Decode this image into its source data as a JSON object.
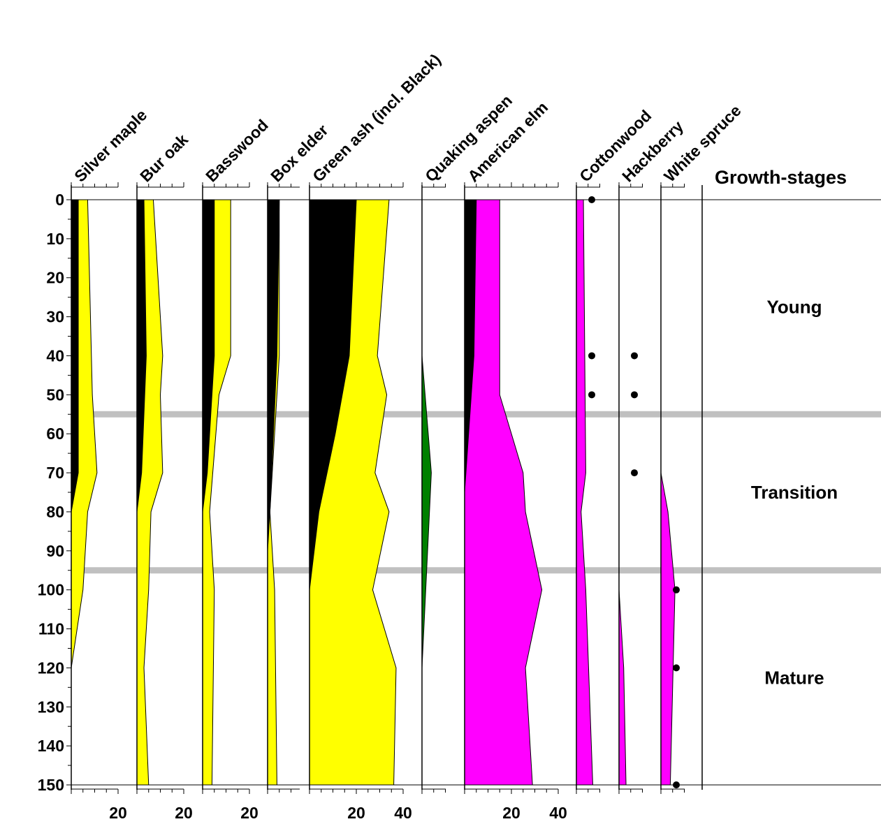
{
  "chart_data": {
    "type": "area",
    "depths": [
      0,
      10,
      20,
      30,
      40,
      50,
      60,
      70,
      80,
      90,
      100,
      110,
      120,
      130,
      140,
      150
    ],
    "y_tick_labels": [
      "0",
      "10",
      "20",
      "30",
      "40",
      "50",
      "60",
      "70",
      "80",
      "90",
      "100",
      "110",
      "120",
      "130",
      "140",
      "150"
    ],
    "ylim": [
      0,
      150
    ],
    "growth_stages_header": "Growth-stages",
    "growth_stages": [
      {
        "label": "Young",
        "from": 0,
        "to": 55
      },
      {
        "label": "Transition",
        "from": 55,
        "to": 95
      },
      {
        "label": "Mature",
        "from": 95,
        "to": 150
      }
    ],
    "stage_boundaries": [
      55,
      95
    ],
    "colors": {
      "yellow": "#ffff00",
      "black": "#000000",
      "magenta": "#ff00ff",
      "green": "#008000",
      "boundary": "#c0c0c0"
    },
    "panels": [
      {
        "name": "Silver maple",
        "xmax": 20,
        "bottom_ticks": [
          "20"
        ],
        "series": [
          {
            "color": "yellow",
            "points": [
              [
                0,
                7
              ],
              [
                50,
                9
              ],
              [
                70,
                11
              ],
              [
                80,
                7
              ],
              [
                100,
                5
              ],
              [
                120,
                0
              ],
              [
                150,
                0
              ]
            ]
          },
          {
            "color": "black",
            "points": [
              [
                0,
                3
              ],
              [
                50,
                3
              ],
              [
                70,
                3
              ],
              [
                80,
                0
              ],
              [
                150,
                0
              ]
            ]
          }
        ]
      },
      {
        "name": "Bur oak",
        "xmax": 20,
        "bottom_ticks": [
          "20"
        ],
        "series": [
          {
            "color": "yellow",
            "points": [
              [
                0,
                7
              ],
              [
                40,
                11
              ],
              [
                50,
                10
              ],
              [
                70,
                11
              ],
              [
                80,
                6
              ],
              [
                100,
                5
              ],
              [
                120,
                3
              ],
              [
                150,
                5
              ]
            ]
          },
          {
            "color": "black",
            "points": [
              [
                0,
                3
              ],
              [
                40,
                4
              ],
              [
                70,
                2
              ],
              [
                80,
                0
              ],
              [
                150,
                0
              ]
            ]
          }
        ]
      },
      {
        "name": "Basswood",
        "xmax": 20,
        "bottom_ticks": [
          "20"
        ],
        "series": [
          {
            "color": "yellow",
            "points": [
              [
                0,
                12
              ],
              [
                40,
                12
              ],
              [
                50,
                7
              ],
              [
                80,
                3
              ],
              [
                100,
                5
              ],
              [
                150,
                4
              ]
            ]
          },
          {
            "color": "black",
            "points": [
              [
                0,
                5
              ],
              [
                40,
                5
              ],
              [
                70,
                2
              ],
              [
                80,
                0
              ],
              [
                150,
                0
              ]
            ]
          }
        ]
      },
      {
        "name": "Box elder",
        "xmax": 20,
        "bottom_ticks": [],
        "series": [
          {
            "color": "yellow",
            "points": [
              [
                0,
                5
              ],
              [
                40,
                5
              ],
              [
                80,
                1
              ],
              [
                100,
                3
              ],
              [
                150,
                4
              ]
            ]
          },
          {
            "color": "black",
            "points": [
              [
                0,
                5
              ],
              [
                40,
                4
              ],
              [
                80,
                1
              ],
              [
                90,
                0
              ],
              [
                150,
                0
              ]
            ]
          }
        ]
      },
      {
        "name": "Green ash (incl. Black)",
        "xmax": 40,
        "bottom_ticks": [
          "20",
          "40"
        ],
        "series": [
          {
            "color": "yellow",
            "points": [
              [
                0,
                34
              ],
              [
                40,
                29
              ],
              [
                50,
                33
              ],
              [
                70,
                28
              ],
              [
                80,
                34
              ],
              [
                100,
                27
              ],
              [
                120,
                37
              ],
              [
                150,
                36
              ]
            ]
          },
          {
            "color": "black",
            "points": [
              [
                0,
                20
              ],
              [
                40,
                17
              ],
              [
                60,
                11
              ],
              [
                80,
                4
              ],
              [
                100,
                0
              ],
              [
                150,
                0
              ]
            ]
          }
        ]
      },
      {
        "name": "Quaking aspen",
        "xmax": 20,
        "bottom_ticks": [],
        "series": [
          {
            "color": "green",
            "points": [
              [
                0,
                0
              ],
              [
                40,
                0
              ],
              [
                70,
                4
              ],
              [
                120,
                0
              ],
              [
                150,
                0
              ]
            ]
          }
        ]
      },
      {
        "name": "American elm",
        "xmax": 40,
        "bottom_ticks": [
          "20",
          "40"
        ],
        "series": [
          {
            "color": "magenta",
            "points": [
              [
                0,
                15
              ],
              [
                50,
                15
              ],
              [
                70,
                25
              ],
              [
                80,
                26
              ],
              [
                100,
                33
              ],
              [
                120,
                26
              ],
              [
                150,
                29
              ]
            ]
          },
          {
            "color": "black",
            "points": [
              [
                0,
                5
              ],
              [
                40,
                4
              ],
              [
                75,
                0
              ],
              [
                150,
                0
              ]
            ]
          }
        ]
      },
      {
        "name": "Cottonwood",
        "xmax": 20,
        "bottom_ticks": [],
        "dots": [
          0,
          40,
          50
        ],
        "series": [
          {
            "color": "magenta",
            "points": [
              [
                0,
                3
              ],
              [
                70,
                4
              ],
              [
                80,
                2
              ],
              [
                100,
                4
              ],
              [
                150,
                7
              ]
            ]
          }
        ]
      },
      {
        "name": "Hackberry",
        "xmax": 20,
        "bottom_ticks": [],
        "dots": [
          40,
          50,
          70
        ],
        "series": [
          {
            "color": "magenta",
            "points": [
              [
                0,
                0
              ],
              [
                100,
                0
              ],
              [
                120,
                2
              ],
              [
                150,
                3
              ]
            ]
          }
        ]
      },
      {
        "name": "White spruce",
        "xmax": 20,
        "bottom_ticks": [],
        "dots": [
          100,
          120,
          150
        ],
        "series": [
          {
            "color": "magenta",
            "points": [
              [
                0,
                0
              ],
              [
                70,
                0
              ],
              [
                80,
                3
              ],
              [
                100,
                6
              ],
              [
                150,
                4
              ]
            ]
          }
        ]
      }
    ]
  }
}
